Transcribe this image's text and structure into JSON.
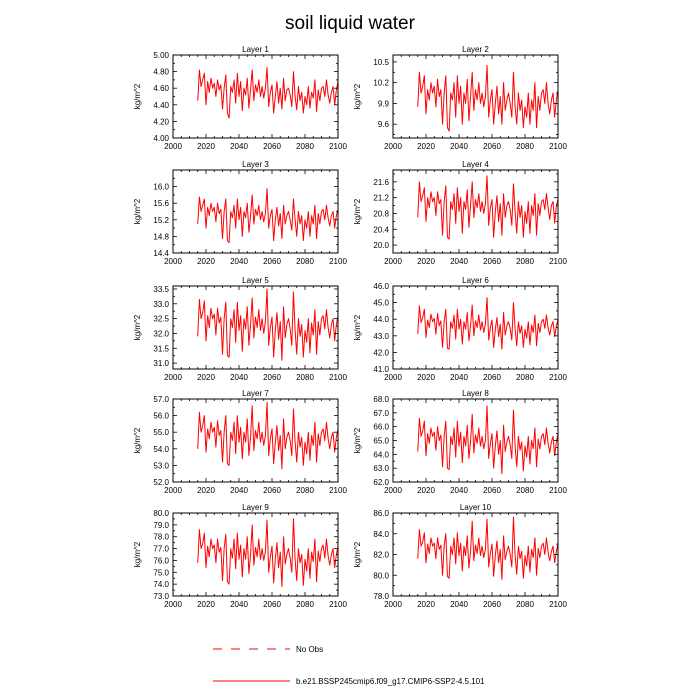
{
  "title": "soil liquid water",
  "colors": {
    "line": "#ff0000",
    "axis": "#000000"
  },
  "legend": {
    "entries": [
      {
        "label": "No Obs",
        "style": "dashed",
        "color": "#ff0000"
      },
      {
        "label": "b.e21.BSSP245cmip6.f09_g17.CMIP6-SSP2-4.5.101",
        "style": "solid",
        "color": "#ff0000"
      }
    ]
  },
  "chart_data": [
    {
      "type": "line",
      "title": "Layer 1",
      "ylabel": "kg/m^2",
      "xlim": [
        2000,
        2100
      ],
      "xticks": [
        "2000",
        "2020",
        "2040",
        "2060",
        "2080",
        "2100"
      ],
      "ylim": [
        4.0,
        5.0
      ],
      "yticks": [
        "4.00",
        "4.20",
        "4.40",
        "4.60",
        "4.80",
        "5.00"
      ],
      "x_start": 2015,
      "values": [
        4.45,
        4.82,
        4.62,
        4.7,
        4.78,
        4.4,
        4.68,
        4.55,
        4.72,
        4.6,
        4.66,
        4.5,
        4.7,
        4.58,
        4.64,
        4.35,
        4.6,
        4.76,
        4.3,
        4.24,
        4.62,
        4.55,
        4.7,
        4.42,
        4.78,
        4.5,
        4.68,
        4.33,
        4.6,
        4.52,
        4.72,
        4.36,
        4.58,
        4.82,
        4.45,
        4.64,
        4.55,
        4.7,
        4.5,
        4.62,
        4.48,
        4.6,
        4.85,
        4.38,
        4.55,
        4.64,
        4.3,
        4.5,
        4.68,
        4.42,
        4.6,
        4.35,
        4.72,
        4.45,
        4.58,
        4.6,
        4.52,
        4.38,
        4.8,
        4.5,
        4.34,
        4.62,
        4.45,
        4.55,
        4.3,
        4.5,
        4.4,
        4.62,
        4.36,
        4.55,
        4.48,
        4.7,
        4.32,
        4.58,
        4.45,
        4.6,
        4.62,
        4.5,
        4.7,
        4.52,
        4.42,
        4.55,
        4.62,
        4.4,
        4.58,
        4.68
      ]
    },
    {
      "type": "line",
      "title": "Layer 2",
      "ylabel": "kg/m^2",
      "xlim": [
        2000,
        2100
      ],
      "xticks": [
        "2000",
        "2020",
        "2040",
        "2060",
        "2080",
        "2100"
      ],
      "ylim": [
        9.4,
        10.6
      ],
      "yticks": [
        "9.6",
        "9.9",
        "10.2",
        "10.5"
      ],
      "x_start": 2015,
      "values": [
        9.85,
        10.35,
        10.05,
        10.15,
        10.3,
        9.75,
        10.1,
        9.95,
        10.2,
        10.05,
        10.15,
        9.85,
        10.25,
        10.0,
        10.1,
        9.6,
        10.05,
        10.3,
        9.55,
        9.5,
        10.05,
        9.95,
        10.2,
        9.7,
        10.3,
        9.9,
        10.15,
        9.6,
        10.05,
        9.9,
        10.25,
        9.65,
        10.0,
        10.35,
        9.8,
        10.1,
        9.95,
        10.2,
        9.9,
        10.05,
        9.85,
        10.0,
        10.45,
        9.7,
        9.95,
        10.1,
        9.6,
        9.9,
        10.15,
        9.75,
        10.0,
        9.6,
        10.2,
        9.8,
        9.95,
        10.05,
        9.9,
        9.7,
        10.35,
        9.85,
        9.6,
        10.05,
        9.8,
        9.95,
        9.55,
        9.85,
        9.7,
        10.05,
        9.6,
        9.95,
        9.8,
        10.2,
        9.55,
        10.0,
        9.8,
        10.05,
        10.1,
        9.9,
        10.2,
        9.9,
        9.75,
        9.95,
        10.05,
        9.7,
        9.95,
        10.1
      ]
    },
    {
      "type": "line",
      "title": "Layer 3",
      "ylabel": "kg/m^2",
      "xlim": [
        2000,
        2100
      ],
      "xticks": [
        "2000",
        "2020",
        "2040",
        "2060",
        "2080",
        "2100"
      ],
      "ylim": [
        14.4,
        16.4
      ],
      "yticks": [
        "14.4",
        "14.8",
        "15.2",
        "15.6",
        "16.0"
      ],
      "x_start": 2015,
      "values": [
        15.1,
        15.75,
        15.4,
        15.55,
        15.7,
        15.0,
        15.5,
        15.3,
        15.6,
        15.4,
        15.5,
        15.15,
        15.6,
        15.35,
        15.45,
        14.75,
        15.4,
        15.7,
        14.7,
        14.65,
        15.4,
        15.25,
        15.55,
        15.0,
        15.7,
        15.2,
        15.5,
        14.8,
        15.4,
        15.25,
        15.6,
        14.9,
        15.3,
        15.8,
        15.1,
        15.45,
        15.3,
        15.55,
        15.2,
        15.4,
        15.15,
        15.35,
        15.95,
        15.0,
        15.3,
        15.45,
        14.7,
        15.2,
        15.5,
        15.05,
        15.35,
        14.75,
        15.55,
        15.1,
        15.3,
        15.4,
        15.2,
        14.95,
        15.7,
        15.2,
        14.8,
        15.4,
        15.1,
        15.3,
        14.7,
        15.2,
        15.0,
        15.4,
        14.8,
        15.3,
        15.1,
        15.55,
        14.75,
        15.35,
        15.1,
        15.4,
        15.45,
        15.2,
        15.55,
        15.25,
        15.05,
        15.3,
        15.4,
        15.0,
        15.3,
        15.45
      ]
    },
    {
      "type": "line",
      "title": "Layer 4",
      "ylabel": "kg/m^2",
      "xlim": [
        2000,
        2100
      ],
      "xticks": [
        "2000",
        "2020",
        "2040",
        "2060",
        "2080",
        "2100"
      ],
      "ylim": [
        19.8,
        21.9
      ],
      "yticks": [
        "20.0",
        "20.4",
        "20.8",
        "21.2",
        "21.6"
      ],
      "x_start": 2015,
      "values": [
        20.7,
        21.6,
        21.1,
        21.25,
        21.45,
        20.6,
        21.2,
        20.95,
        21.35,
        21.1,
        21.2,
        20.75,
        21.35,
        21.05,
        21.15,
        20.25,
        21.1,
        21.5,
        20.2,
        20.15,
        21.1,
        20.9,
        21.3,
        20.55,
        21.45,
        20.85,
        21.2,
        20.3,
        21.1,
        20.9,
        21.4,
        20.45,
        21.0,
        21.6,
        20.7,
        21.15,
        20.95,
        21.3,
        20.85,
        21.1,
        20.8,
        21.05,
        21.75,
        20.5,
        20.95,
        21.15,
        20.2,
        20.85,
        21.25,
        20.6,
        21.05,
        20.25,
        21.3,
        20.7,
        21.0,
        21.1,
        20.9,
        20.5,
        21.55,
        20.85,
        20.3,
        21.1,
        20.7,
        21.0,
        20.2,
        20.85,
        20.55,
        21.1,
        20.3,
        21.0,
        20.75,
        21.3,
        20.25,
        21.05,
        20.75,
        21.1,
        21.15,
        20.9,
        21.3,
        20.95,
        20.65,
        21.0,
        21.1,
        20.55,
        21.0,
        21.15
      ]
    },
    {
      "type": "line",
      "title": "Layer 5",
      "ylabel": "kg/m^2",
      "xlim": [
        2000,
        2100
      ],
      "xticks": [
        "2000",
        "2020",
        "2040",
        "2060",
        "2080",
        "2100"
      ],
      "ylim": [
        30.8,
        33.6
      ],
      "yticks": [
        "31.0",
        "31.5",
        "32.0",
        "32.5",
        "33.0",
        "33.5"
      ],
      "x_start": 2015,
      "values": [
        31.9,
        33.15,
        32.5,
        32.7,
        33.1,
        31.75,
        32.6,
        32.2,
        32.85,
        32.5,
        32.65,
        31.95,
        32.85,
        32.35,
        32.55,
        31.3,
        32.5,
        33.05,
        31.25,
        31.2,
        32.5,
        32.2,
        32.8,
        31.7,
        33.05,
        32.1,
        32.6,
        31.4,
        32.5,
        32.15,
        32.9,
        31.6,
        32.3,
        33.2,
        31.85,
        32.55,
        32.2,
        32.8,
        32.1,
        32.5,
        32.0,
        32.4,
        33.5,
        31.6,
        32.2,
        32.55,
        31.2,
        32.1,
        32.7,
        31.8,
        32.4,
        31.1,
        32.9,
        31.85,
        32.3,
        32.5,
        32.15,
        31.6,
        33.4,
        32.1,
        31.3,
        32.5,
        31.9,
        32.3,
        31.2,
        32.1,
        31.7,
        32.5,
        31.35,
        32.35,
        31.95,
        32.8,
        31.3,
        32.4,
        31.95,
        32.5,
        32.6,
        32.15,
        32.8,
        32.2,
        31.85,
        32.3,
        32.5,
        31.75,
        32.3,
        32.6
      ]
    },
    {
      "type": "line",
      "title": "Layer 6",
      "ylabel": "kg/m^2",
      "xlim": [
        2000,
        2100
      ],
      "xticks": [
        "2000",
        "2020",
        "2040",
        "2060",
        "2080",
        "2100"
      ],
      "ylim": [
        41.0,
        46.0
      ],
      "yticks": [
        "41.0",
        "42.0",
        "43.0",
        "44.0",
        "45.0",
        "46.0"
      ],
      "x_start": 2015,
      "values": [
        43.1,
        44.8,
        43.8,
        44.1,
        44.6,
        42.9,
        43.95,
        43.5,
        44.3,
        43.85,
        44.05,
        43.1,
        44.35,
        43.6,
        43.9,
        42.3,
        43.85,
        44.6,
        42.25,
        42.2,
        43.85,
        43.45,
        44.25,
        42.8,
        44.6,
        43.4,
        44.0,
        42.5,
        43.85,
        43.4,
        44.4,
        42.7,
        43.6,
        44.85,
        43.0,
        43.9,
        43.5,
        44.25,
        43.35,
        43.85,
        43.2,
        43.7,
        45.3,
        42.75,
        43.5,
        43.95,
        42.3,
        43.4,
        44.1,
        42.95,
        43.7,
        42.2,
        44.4,
        43.05,
        43.6,
        43.85,
        43.45,
        42.75,
        45.0,
        43.4,
        42.4,
        43.85,
        43.15,
        43.6,
        42.3,
        43.4,
        42.85,
        43.85,
        42.45,
        43.65,
        43.2,
        44.25,
        42.4,
        43.75,
        43.2,
        43.85,
        44.0,
        43.45,
        44.25,
        43.5,
        43.05,
        43.6,
        43.85,
        42.95,
        43.6,
        44.0
      ]
    },
    {
      "type": "line",
      "title": "Layer 7",
      "ylabel": "kg/m^2",
      "xlim": [
        2000,
        2100
      ],
      "xticks": [
        "2000",
        "2020",
        "2040",
        "2060",
        "2080",
        "2100"
      ],
      "ylim": [
        52.0,
        57.0
      ],
      "yticks": [
        "52.0",
        "53.0",
        "54.0",
        "55.0",
        "56.0",
        "57.0"
      ],
      "x_start": 2015,
      "values": [
        54.0,
        56.2,
        55.0,
        55.4,
        56.0,
        53.8,
        55.2,
        54.6,
        55.6,
        55.0,
        55.3,
        54.1,
        55.7,
        54.8,
        55.1,
        53.2,
        55.0,
        56.0,
        53.1,
        53.0,
        55.0,
        54.5,
        55.6,
        53.7,
        56.0,
        54.4,
        55.3,
        53.4,
        55.0,
        54.4,
        55.8,
        53.6,
        54.7,
        56.6,
        53.9,
        55.1,
        54.6,
        55.6,
        54.4,
        55.0,
        54.2,
        54.8,
        56.8,
        53.6,
        54.6,
        55.2,
        53.1,
        54.4,
        55.4,
        53.9,
        54.8,
        52.8,
        55.8,
        54.0,
        54.7,
        55.0,
        54.5,
        53.6,
        56.4,
        54.4,
        53.2,
        55.0,
        54.1,
        54.7,
        53.0,
        54.4,
        53.7,
        55.0,
        53.3,
        54.8,
        54.2,
        55.6,
        53.2,
        54.9,
        54.2,
        55.0,
        55.2,
        54.5,
        55.6,
        54.6,
        54.0,
        54.7,
        55.0,
        53.8,
        54.7,
        55.2
      ]
    },
    {
      "type": "line",
      "title": "Layer 8",
      "ylabel": "kg/m^2",
      "xlim": [
        2000,
        2100
      ],
      "xticks": [
        "2000",
        "2020",
        "2040",
        "2060",
        "2080",
        "2100"
      ],
      "ylim": [
        62.0,
        68.0
      ],
      "yticks": [
        "62.0",
        "63.0",
        "64.0",
        "65.0",
        "66.0",
        "67.0",
        "68.0"
      ],
      "x_start": 2015,
      "values": [
        64.2,
        66.6,
        65.3,
        65.7,
        66.4,
        63.9,
        65.5,
        64.8,
        65.9,
        65.3,
        65.6,
        64.3,
        66.0,
        65.0,
        65.4,
        63.1,
        65.3,
        66.4,
        63.0,
        62.9,
        65.3,
        64.7,
        65.9,
        63.8,
        66.4,
        64.6,
        65.6,
        63.4,
        65.3,
        64.6,
        66.1,
        63.7,
        64.9,
        66.9,
        64.1,
        65.4,
        64.8,
        65.9,
        64.6,
        65.3,
        64.4,
        65.0,
        67.5,
        63.7,
        64.8,
        65.5,
        63.0,
        64.6,
        65.7,
        64.0,
        65.0,
        62.6,
        66.1,
        64.2,
        64.9,
        65.3,
        64.7,
        63.7,
        67.2,
        64.6,
        63.1,
        65.3,
        64.3,
        64.9,
        62.8,
        64.6,
        63.8,
        65.3,
        63.3,
        65.0,
        64.4,
        65.9,
        63.1,
        65.1,
        64.4,
        65.3,
        65.5,
        64.7,
        65.9,
        64.8,
        64.1,
        64.9,
        65.3,
        63.9,
        64.9,
        65.5
      ]
    },
    {
      "type": "line",
      "title": "Layer 9",
      "ylabel": "kg/m^2",
      "xlim": [
        2000,
        2100
      ],
      "xticks": [
        "2000",
        "2020",
        "2040",
        "2060",
        "2080",
        "2100"
      ],
      "ylim": [
        73.0,
        80.0
      ],
      "yticks": [
        "73.0",
        "74.0",
        "75.0",
        "76.0",
        "77.0",
        "78.0",
        "79.0",
        "80.0"
      ],
      "x_start": 2015,
      "values": [
        75.8,
        78.6,
        77.0,
        77.4,
        78.3,
        75.4,
        77.2,
        76.3,
        77.8,
        77.0,
        77.3,
        75.8,
        77.8,
        76.7,
        77.1,
        74.3,
        77.0,
        78.2,
        74.2,
        74.0,
        77.0,
        76.2,
        77.8,
        75.3,
        78.3,
        76.1,
        77.3,
        74.6,
        77.0,
        76.1,
        78.0,
        74.9,
        76.5,
        79.0,
        75.6,
        77.1,
        76.3,
        77.8,
        76.1,
        77.0,
        76.0,
        76.7,
        79.4,
        75.0,
        76.3,
        77.2,
        74.1,
        76.1,
        77.5,
        75.4,
        76.7,
        73.8,
        78.0,
        75.7,
        76.5,
        77.0,
        76.2,
        75.0,
        79.5,
        76.1,
        74.3,
        77.0,
        75.8,
        76.5,
        73.9,
        76.1,
        75.1,
        77.0,
        74.5,
        76.7,
        75.9,
        77.8,
        74.2,
        76.8,
        75.9,
        77.0,
        77.3,
        76.2,
        77.8,
        76.4,
        75.6,
        76.5,
        77.0,
        75.4,
        76.5,
        77.2
      ]
    },
    {
      "type": "line",
      "title": "Layer 10",
      "ylabel": "kg/m^2",
      "xlim": [
        2000,
        2100
      ],
      "xticks": [
        "2000",
        "2020",
        "2040",
        "2060",
        "2080",
        "2100"
      ],
      "ylim": [
        78.0,
        86.0
      ],
      "yticks": [
        "78.0",
        "80.0",
        "82.0",
        "84.0",
        "86.0"
      ],
      "x_start": 2015,
      "values": [
        81.6,
        84.4,
        82.8,
        83.2,
        84.1,
        81.2,
        83.0,
        82.1,
        83.6,
        82.8,
        83.1,
        81.6,
        83.6,
        82.5,
        82.9,
        80.0,
        82.8,
        84.0,
        79.9,
        79.7,
        82.8,
        82.0,
        83.6,
        81.1,
        84.1,
        81.9,
        83.1,
        80.4,
        82.8,
        81.9,
        83.8,
        80.7,
        82.3,
        85.2,
        81.4,
        82.9,
        82.1,
        83.6,
        81.9,
        82.8,
        81.7,
        82.5,
        85.4,
        80.8,
        82.1,
        83.0,
        79.9,
        81.9,
        83.3,
        81.2,
        82.5,
        79.6,
        83.8,
        81.5,
        82.3,
        82.8,
        82.0,
        80.8,
        85.6,
        81.9,
        80.1,
        82.8,
        81.6,
        82.3,
        79.7,
        81.9,
        80.9,
        82.8,
        80.3,
        82.5,
        81.7,
        83.6,
        80.0,
        82.6,
        81.7,
        82.8,
        83.1,
        82.0,
        83.6,
        82.2,
        81.4,
        82.3,
        82.8,
        81.2,
        82.3,
        83.0
      ]
    }
  ]
}
